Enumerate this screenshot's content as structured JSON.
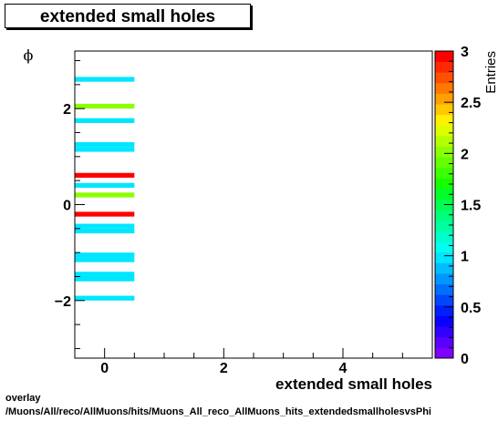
{
  "header": {
    "title": "extended small holes"
  },
  "footer": {
    "line1": "overlay",
    "line2": "/Muons/All/reco/AllMuons/hits/Muons_All_reco_AllMuons_hits_extendedsmallholesvsPhi"
  },
  "chart_data": {
    "type": "heatmap",
    "title": "extended small holes",
    "xlabel": "extended small holes",
    "ylabel": "ϕ",
    "zlabel": "Entries",
    "xlim": [
      -0.5,
      5.5
    ],
    "ylim": [
      -3.2,
      3.2
    ],
    "zlim": [
      0,
      3
    ],
    "x_ticks": [
      0,
      2,
      4
    ],
    "y_ticks": [
      -2,
      0,
      2
    ],
    "z_ticks": [
      "0",
      "0.5",
      "1",
      "1.5",
      "2",
      "2.5",
      "3"
    ],
    "grid": false,
    "x_bin": [
      -0.5,
      0.5
    ],
    "cells": [
      {
        "y": [
          2.56,
          2.66
        ],
        "value": 1
      },
      {
        "y": [
          2.0,
          2.1
        ],
        "value": 2
      },
      {
        "y": [
          1.7,
          1.8
        ],
        "value": 1
      },
      {
        "y": [
          1.2,
          1.3
        ],
        "value": 1
      },
      {
        "y": [
          1.1,
          1.2
        ],
        "value": 1
      },
      {
        "y": [
          0.56,
          0.66
        ],
        "value": 3
      },
      {
        "y": [
          0.35,
          0.45
        ],
        "value": 1
      },
      {
        "y": [
          0.15,
          0.25
        ],
        "value": 2
      },
      {
        "y": [
          -0.25,
          -0.15
        ],
        "value": 3
      },
      {
        "y": [
          -0.5,
          -0.4
        ],
        "value": 1
      },
      {
        "y": [
          -0.6,
          -0.5
        ],
        "value": 1
      },
      {
        "y": [
          -1.1,
          -1.0
        ],
        "value": 1
      },
      {
        "y": [
          -1.2,
          -1.1
        ],
        "value": 1
      },
      {
        "y": [
          -1.5,
          -1.4
        ],
        "value": 1
      },
      {
        "y": [
          -1.6,
          -1.5
        ],
        "value": 1
      },
      {
        "y": [
          -2.0,
          -1.9
        ],
        "value": 1
      }
    ],
    "palette": [
      "#7f00ff",
      "#5a00ff",
      "#3200ff",
      "#0a00ff",
      "#001eff",
      "#0046ff",
      "#006eff",
      "#0096ff",
      "#00beff",
      "#00e6ff",
      "#00fff0",
      "#00ffc8",
      "#00ffa0",
      "#00ff78",
      "#00ff50",
      "#00ff28",
      "#14ff00",
      "#3cff00",
      "#64ff00",
      "#8cff00",
      "#b4ff00",
      "#dcff00",
      "#fff000",
      "#ffc800",
      "#ffa000",
      "#ff7800",
      "#ff5000",
      "#ff2800",
      "#ff0000"
    ]
  }
}
